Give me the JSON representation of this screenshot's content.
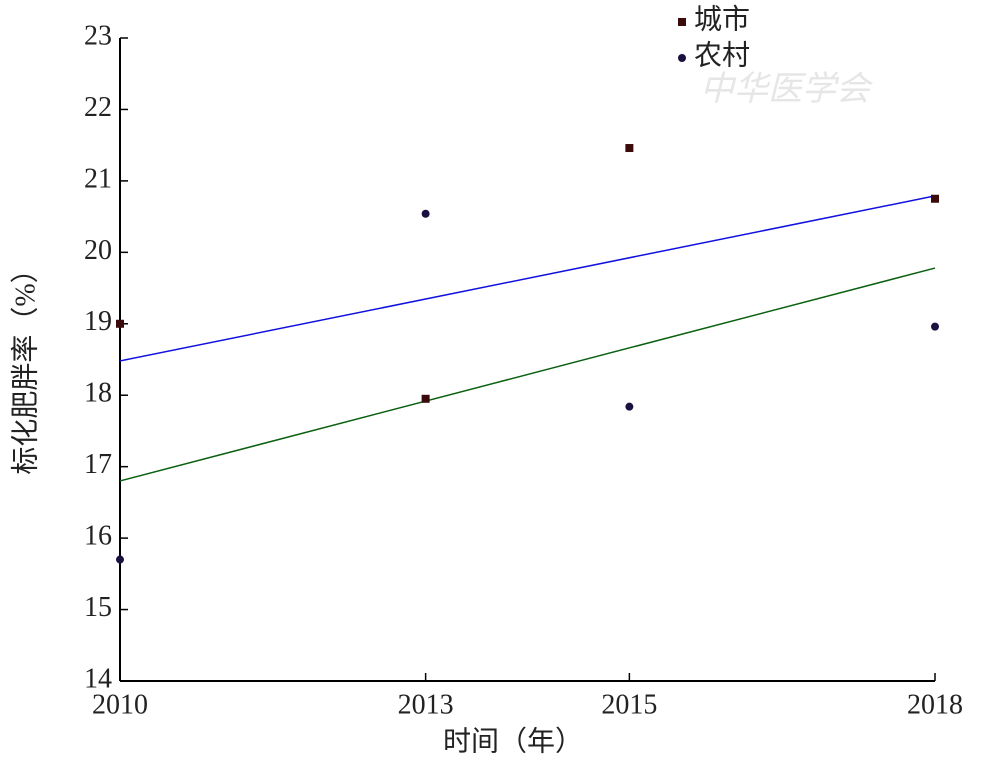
{
  "chart_data": {
    "type": "scatter",
    "xlabel": "时间（年）",
    "ylabel": "标化肥胖率（%）",
    "xlim": [
      2010,
      2018
    ],
    "xticks": [
      2010,
      2013,
      2015,
      2018
    ],
    "ylim": [
      14,
      23
    ],
    "yticks": [
      14,
      15,
      16,
      17,
      18,
      19,
      20,
      21,
      22,
      23
    ],
    "series": [
      {
        "name": "城市",
        "marker": "square",
        "color": "#3b0a0a",
        "x": [
          2010,
          2013,
          2015,
          2018
        ],
        "values": [
          19.0,
          17.95,
          21.46,
          20.75
        ]
      },
      {
        "name": "农村",
        "marker": "circle",
        "color": "#1b1040",
        "x": [
          2010,
          2013,
          2015,
          2018
        ],
        "values": [
          15.7,
          20.54,
          17.84,
          18.96
        ]
      }
    ],
    "lines": [
      {
        "color": "#1010e0",
        "x": [
          2010,
          2018
        ],
        "values": [
          18.48,
          20.79
        ]
      },
      {
        "color": "#0a6010",
        "x": [
          2010,
          2018
        ],
        "values": [
          16.8,
          19.78
        ]
      }
    ],
    "legend": "top-right",
    "watermark": "中华医学会"
  }
}
